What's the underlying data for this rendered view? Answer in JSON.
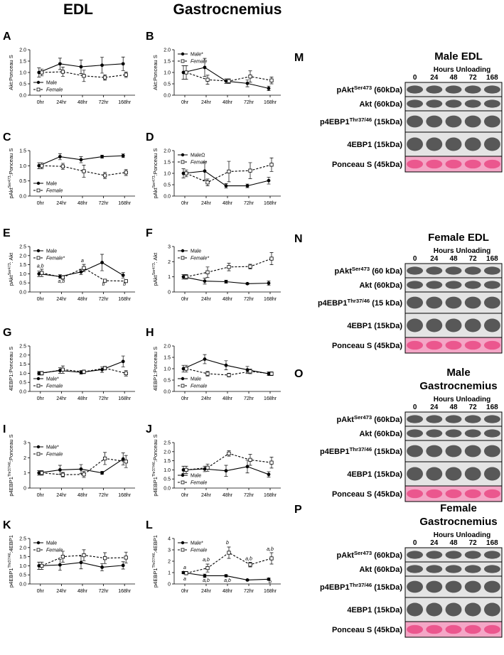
{
  "headers": [
    "EDL",
    "Gastrocnemius"
  ],
  "chart_data": [
    {
      "type": "line",
      "letter": "A",
      "ylabel": [
        "Akt:Ponceau S"
      ],
      "legend": "lower left",
      "categories": [
        "0hr",
        "24hr",
        "48hr",
        "72hr",
        "168hr"
      ],
      "ylim": [
        0,
        2
      ],
      "yticks": [
        {
          "value": 0,
          "label": "0.0"
        },
        0.5,
        {
          "value": 1,
          "label": "1.0"
        },
        1.5,
        {
          "value": 2,
          "label": "2.0"
        }
      ],
      "series": [
        {
          "name": "Male",
          "color": "#000000",
          "dash": false,
          "values": [
            1.0,
            1.38,
            1.25,
            1.32,
            1.38
          ],
          "errors": [
            0.2,
            0.25,
            0.3,
            0.35,
            0.3
          ]
        },
        {
          "name": "Female",
          "color": "#000000",
          "dash": true,
          "values": [
            1.0,
            1.03,
            0.85,
            0.78,
            0.9
          ],
          "errors": [
            0.15,
            0.2,
            0.25,
            0.12,
            0.12
          ]
        }
      ]
    },
    {
      "type": "line",
      "letter": "B",
      "ylabel": [
        "Akt:Ponceau S"
      ],
      "legend": "upper left",
      "categories": [
        "0hr",
        "24hr",
        "48hr",
        "72hr",
        "168hr"
      ],
      "ylim": [
        0,
        2
      ],
      "yticks": [
        {
          "value": 0,
          "label": "0.0"
        },
        0.5,
        {
          "value": 1,
          "label": "1.0"
        },
        1.5,
        {
          "value": 2,
          "label": "2.0"
        }
      ],
      "series": [
        {
          "name": "Male*",
          "color": "#000000",
          "dash": false,
          "values": [
            1.0,
            1.22,
            0.62,
            0.52,
            0.3
          ],
          "errors": [
            0.3,
            0.4,
            0.1,
            0.15,
            0.1
          ]
        },
        {
          "name": "Female",
          "color": "#000000",
          "dash": true,
          "values": [
            1.0,
            0.68,
            0.62,
            0.82,
            0.65
          ],
          "errors": [
            0.3,
            0.2,
            0.1,
            0.25,
            0.15
          ]
        }
      ]
    },
    {
      "type": "line",
      "letter": "C",
      "ylabel": [
        "pAkt",
        "Ser473",
        ":Ponceau S"
      ],
      "legend": "lower left",
      "categories": [
        "0hr",
        "24hr",
        "48hr",
        "72hr",
        "168hr"
      ],
      "ylim": [
        0,
        1.5
      ],
      "yticks": [
        {
          "value": 0,
          "label": "0.0"
        },
        0.5,
        {
          "value": 1,
          "label": "1.0"
        },
        1.5
      ],
      "series": [
        {
          "name": "Male",
          "color": "#000000",
          "dash": false,
          "values": [
            1.0,
            1.3,
            1.2,
            1.3,
            1.33
          ],
          "errors": [
            0.1,
            0.1,
            0.1,
            0.05,
            0.06
          ]
        },
        {
          "name": "Female",
          "color": "#000000",
          "dash": true,
          "values": [
            1.0,
            0.98,
            0.82,
            0.68,
            0.78
          ],
          "errors": [
            0.1,
            0.1,
            0.2,
            0.1,
            0.1
          ]
        }
      ]
    },
    {
      "type": "line",
      "letter": "D",
      "ylabel": [
        "pAkt",
        "Ser473",
        ":Ponceau S"
      ],
      "legend": "upper left",
      "categories": [
        "0hr",
        "24hr",
        "48hr",
        "72hr",
        "168hr"
      ],
      "ylim": [
        0,
        2
      ],
      "yticks": [
        {
          "value": 0,
          "label": "0.0"
        },
        0.5,
        {
          "value": 1,
          "label": "1.0"
        },
        1.5,
        {
          "value": 2,
          "label": "2.0"
        }
      ],
      "series": [
        {
          "name": "MaleΩ",
          "color": "#000000",
          "dash": false,
          "values": [
            1.0,
            1.1,
            0.45,
            0.45,
            0.68
          ],
          "errors": [
            0.2,
            0.4,
            0.1,
            0.08,
            0.15
          ]
        },
        {
          "name": "Female",
          "color": "#000000",
          "dash": true,
          "values": [
            1.0,
            0.6,
            1.08,
            1.12,
            1.38
          ],
          "errors": [
            0.15,
            0.15,
            0.45,
            0.35,
            0.3
          ]
        }
      ]
    },
    {
      "type": "line",
      "letter": "E",
      "ylabel": [
        "pAkt",
        "Ser473",
        ": Akt"
      ],
      "legend": "upper left",
      "categories": [
        "0hr",
        "24hr",
        "48hr",
        "72hr",
        "168hr"
      ],
      "ylim": [
        0,
        2.5
      ],
      "yticks": [
        {
          "value": 0,
          "label": "0.0"
        },
        0.5,
        {
          "value": 1,
          "label": "1.0"
        },
        1.5,
        {
          "value": 2,
          "label": "2.0"
        },
        2.5
      ],
      "series": [
        {
          "name": "Male",
          "color": "#000000",
          "dash": false,
          "values": [
            1.0,
            0.85,
            1.1,
            1.62,
            0.92
          ],
          "errors": [
            0.15,
            0.1,
            0.15,
            0.45,
            0.15
          ]
        },
        {
          "name": "Female*",
          "color": "#000000",
          "dash": true,
          "values": [
            1.05,
            0.8,
            1.32,
            0.62,
            0.6
          ],
          "errors": [
            0.2,
            0.1,
            0.2,
            0.08,
            0.05
          ]
        }
      ],
      "annotations": [
        {
          "x": 0,
          "y": 1.35,
          "text": "a,b"
        },
        {
          "x": 1,
          "y": 0.5,
          "text": "a,b"
        },
        {
          "x": 2,
          "y": 1.65,
          "text": "a"
        },
        {
          "x": 3,
          "y": 0.35,
          "text": "b"
        },
        {
          "x": 4,
          "y": 0.35,
          "text": "b"
        }
      ]
    },
    {
      "type": "line",
      "letter": "F",
      "ylabel": [
        "pAkt",
        "Ser473",
        ": Akt"
      ],
      "legend": "upper left",
      "categories": [
        "0hr",
        "24hr",
        "48hr",
        "72hr",
        "168hr"
      ],
      "ylim": [
        0,
        3
      ],
      "yticks": [
        0,
        1,
        2,
        3
      ],
      "series": [
        {
          "name": "Male",
          "color": "#000000",
          "dash": false,
          "values": [
            1.0,
            0.72,
            0.68,
            0.55,
            0.58
          ],
          "errors": [
            0.15,
            0.2,
            0.1,
            0.05,
            0.15
          ]
        },
        {
          "name": "Female*",
          "color": "#000000",
          "dash": true,
          "values": [
            1.0,
            1.3,
            1.65,
            1.68,
            2.2
          ],
          "errors": [
            0.15,
            0.35,
            0.25,
            0.15,
            0.4
          ]
        }
      ]
    },
    {
      "type": "line",
      "letter": "G",
      "ylabel": [
        "4EBP1:Ponceau S"
      ],
      "legend": "lower left",
      "categories": [
        "0hr",
        "24hr",
        "48hr",
        "72hr",
        "168hr"
      ],
      "ylim": [
        0,
        2.5
      ],
      "yticks": [
        {
          "value": 0,
          "label": "0.0"
        },
        0.5,
        {
          "value": 1,
          "label": "1.0"
        },
        1.5,
        {
          "value": 2,
          "label": "2.0"
        },
        2.5
      ],
      "series": [
        {
          "name": "Male*",
          "color": "#000000",
          "dash": false,
          "values": [
            1.0,
            1.15,
            1.05,
            1.2,
            1.65
          ],
          "errors": [
            0.1,
            0.15,
            0.1,
            0.15,
            0.3
          ]
        },
        {
          "name": "Female",
          "color": "#000000",
          "dash": true,
          "values": [
            1.0,
            1.2,
            1.08,
            1.28,
            1.0
          ],
          "errors": [
            0.1,
            0.2,
            0.1,
            0.1,
            0.15
          ]
        }
      ]
    },
    {
      "type": "line",
      "letter": "H",
      "ylabel": [
        "4EBP1:Ponceau S"
      ],
      "legend": "lower left",
      "categories": [
        "0hr",
        "24hr",
        "48hr",
        "72hr",
        "168hr"
      ],
      "ylim": [
        0,
        2
      ],
      "yticks": [
        {
          "value": 0,
          "label": "0.0"
        },
        0.5,
        {
          "value": 1,
          "label": "1.0"
        },
        1.5,
        {
          "value": 2,
          "label": "2.0"
        }
      ],
      "series": [
        {
          "name": "Male",
          "color": "#000000",
          "dash": false,
          "values": [
            1.0,
            1.42,
            1.15,
            0.95,
            0.78
          ],
          "errors": [
            0.15,
            0.2,
            0.2,
            0.15,
            0.08
          ]
        },
        {
          "name": "Female",
          "color": "#000000",
          "dash": true,
          "values": [
            1.0,
            0.78,
            0.72,
            0.88,
            0.78
          ],
          "errors": [
            0.15,
            0.1,
            0.08,
            0.1,
            0.08
          ]
        }
      ]
    },
    {
      "type": "line",
      "letter": "I",
      "ylabel": [
        "p4EBP1",
        "Thr37/46",
        ":Ponceau S"
      ],
      "legend": "upper left",
      "categories": [
        "0hr",
        "24hr",
        "48hr",
        "72hr",
        "168hr"
      ],
      "ylim": [
        0,
        3
      ],
      "yticks": [
        0,
        1,
        2,
        3
      ],
      "series": [
        {
          "name": "Male*",
          "color": "#000000",
          "dash": false,
          "values": [
            1.0,
            1.2,
            1.25,
            1.0,
            1.92
          ],
          "errors": [
            0.15,
            0.3,
            0.3,
            0.1,
            0.4
          ]
        },
        {
          "name": "Female",
          "color": "#000000",
          "dash": true,
          "values": [
            1.0,
            0.88,
            0.9,
            1.95,
            1.75
          ],
          "errors": [
            0.15,
            0.15,
            0.2,
            0.4,
            0.4
          ]
        }
      ]
    },
    {
      "type": "line",
      "letter": "J",
      "ylabel": [
        "p4EBP1",
        "Thr37/46",
        ":Ponceau S"
      ],
      "legend": "lower left",
      "categories": [
        "0hr",
        "24hr",
        "48hr",
        "72hr",
        "168hr"
      ],
      "ylim": [
        0,
        2.5
      ],
      "yticks": [
        {
          "value": 0,
          "label": "0.0"
        },
        0.5,
        {
          "value": 1,
          "label": "1.0"
        },
        1.5,
        {
          "value": 2,
          "label": "2.0"
        },
        2.5
      ],
      "series": [
        {
          "name": "Male",
          "color": "#000000",
          "dash": false,
          "values": [
            1.0,
            1.05,
            0.95,
            1.18,
            0.75
          ],
          "errors": [
            0.2,
            0.15,
            0.3,
            0.35,
            0.15
          ]
        },
        {
          "name": "Female",
          "color": "#000000",
          "dash": true,
          "values": [
            1.0,
            1.12,
            1.9,
            1.55,
            1.4
          ],
          "errors": [
            0.2,
            0.2,
            0.15,
            0.3,
            0.3
          ]
        }
      ]
    },
    {
      "type": "line",
      "letter": "K",
      "ylabel": [
        "p4EBP1",
        "Thr37/46",
        ":4EBP1"
      ],
      "legend": "upper left",
      "categories": [
        "0hr",
        "24hr",
        "48hr",
        "72hr",
        "168hr"
      ],
      "ylim": [
        0,
        2.5
      ],
      "yticks": [
        {
          "value": 0,
          "label": "0.0"
        },
        0.5,
        {
          "value": 1,
          "label": "1.0"
        },
        1.5,
        {
          "value": 2,
          "label": "2.0"
        },
        2.5
      ],
      "series": [
        {
          "name": "Male",
          "color": "#000000",
          "dash": false,
          "values": [
            1.0,
            1.05,
            1.18,
            0.92,
            1.02
          ],
          "errors": [
            0.2,
            0.3,
            0.35,
            0.2,
            0.2
          ]
        },
        {
          "name": "Female",
          "color": "#000000",
          "dash": true,
          "values": [
            1.0,
            1.5,
            1.58,
            1.42,
            1.45
          ],
          "errors": [
            0.2,
            0.3,
            0.3,
            0.3,
            0.3
          ]
        }
      ]
    },
    {
      "type": "line",
      "letter": "L",
      "ylabel": [
        "p4EBP1",
        "Thr37/46",
        ":4EBP1"
      ],
      "legend": "upper left",
      "categories": [
        "0hr",
        "24hr",
        "48hr",
        "72hr",
        "168hr"
      ],
      "ylim": [
        0,
        4
      ],
      "yticks": [
        0,
        1,
        2,
        3,
        4
      ],
      "series": [
        {
          "name": "Male*",
          "color": "#000000",
          "dash": false,
          "values": [
            1.0,
            0.72,
            0.72,
            0.35,
            0.42
          ],
          "errors": [
            0.1,
            0.15,
            0.1,
            0.05,
            0.1
          ]
        },
        {
          "name": "Female",
          "color": "#000000",
          "dash": true,
          "values": [
            0.95,
            1.4,
            2.75,
            1.7,
            2.25
          ],
          "errors": [
            0.15,
            0.35,
            0.5,
            0.2,
            0.5
          ]
        }
      ],
      "annotations": [
        {
          "x": 0,
          "y": 1.3,
          "text": "a"
        },
        {
          "x": 0,
          "y": 0.3,
          "text": "a"
        },
        {
          "x": 1,
          "y": 2.0,
          "text": "a,b"
        },
        {
          "x": 1,
          "y": 0.2,
          "text": "a,b"
        },
        {
          "x": 2,
          "y": 3.5,
          "text": "b"
        },
        {
          "x": 2,
          "y": 0.2,
          "text": "a,b"
        },
        {
          "x": 3,
          "y": 2.1,
          "text": "a,b"
        },
        {
          "x": 4,
          "y": 2.95,
          "text": "a,b"
        },
        {
          "x": 4,
          "y": 0.05,
          "text": "b"
        }
      ]
    }
  ],
  "blots": [
    {
      "letter": "M",
      "title": [
        "Male EDL"
      ],
      "subtitle": "Hours Unloading",
      "hours": [
        "0",
        "24",
        "48",
        "72",
        "168"
      ],
      "rows": [
        {
          "label": [
            "pAkt",
            "Ser473",
            " (60kDa)"
          ]
        },
        {
          "label": [
            "Akt (60kDa)"
          ]
        },
        {
          "label": [
            "p4EBP1",
            "Thr37/46",
            " (15kDa)"
          ]
        },
        {
          "label": [
            "4EBP1 (15kDa)"
          ]
        },
        {
          "label": [
            "Ponceau S (45kDa)"
          ],
          "pink": true
        }
      ]
    },
    {
      "letter": "N",
      "title": [
        "Female EDL"
      ],
      "subtitle": "Hours Unloading",
      "hours": [
        "0",
        "24",
        "48",
        "72",
        "168"
      ],
      "rows": [
        {
          "label": [
            "pAkt",
            "Ser473",
            " (60 kDa)"
          ]
        },
        {
          "label": [
            "Akt (60kDa)"
          ]
        },
        {
          "label": [
            "p4EBP1",
            "Thr37/46",
            " (15 kDa)"
          ]
        },
        {
          "label": [
            "4EBP1 (15kDa)"
          ]
        },
        {
          "label": [
            "Ponceau S (45kDa)"
          ],
          "pink": true
        }
      ]
    },
    {
      "letter": "O",
      "title": [
        "Male",
        "Gastrocnemius"
      ],
      "subtitle": "Hours Unloading",
      "hours": [
        "0",
        "24",
        "48",
        "72",
        "168"
      ],
      "rows": [
        {
          "label": [
            "pAkt",
            "Ser473",
            " (60kDa)"
          ]
        },
        {
          "label": [
            "Akt (60kDa)"
          ]
        },
        {
          "label": [
            "p4EBP1",
            "Thr37/46",
            " (15kDa)"
          ]
        },
        {
          "label": [
            "4EBP1 (15kDa)"
          ]
        },
        {
          "label": [
            "Ponceau S (45kDa)"
          ],
          "pink": true
        }
      ]
    },
    {
      "letter": "P",
      "title": [
        "Female",
        "Gastrocnemius"
      ],
      "subtitle": "Hours Unloading",
      "hours": [
        "0",
        "24",
        "48",
        "72",
        "168"
      ],
      "rows": [
        {
          "label": [
            "pAkt",
            "Ser473",
            " (60kDa)"
          ]
        },
        {
          "label": [
            "Akt (60kDa)"
          ]
        },
        {
          "label": [
            "p4EBP1",
            "Thr37/46",
            " (15kDa)"
          ]
        },
        {
          "label": [
            "4EBP1 (15kDa)"
          ]
        },
        {
          "label": [
            "Ponceau S (45kDa)"
          ],
          "pink": true
        }
      ]
    }
  ]
}
